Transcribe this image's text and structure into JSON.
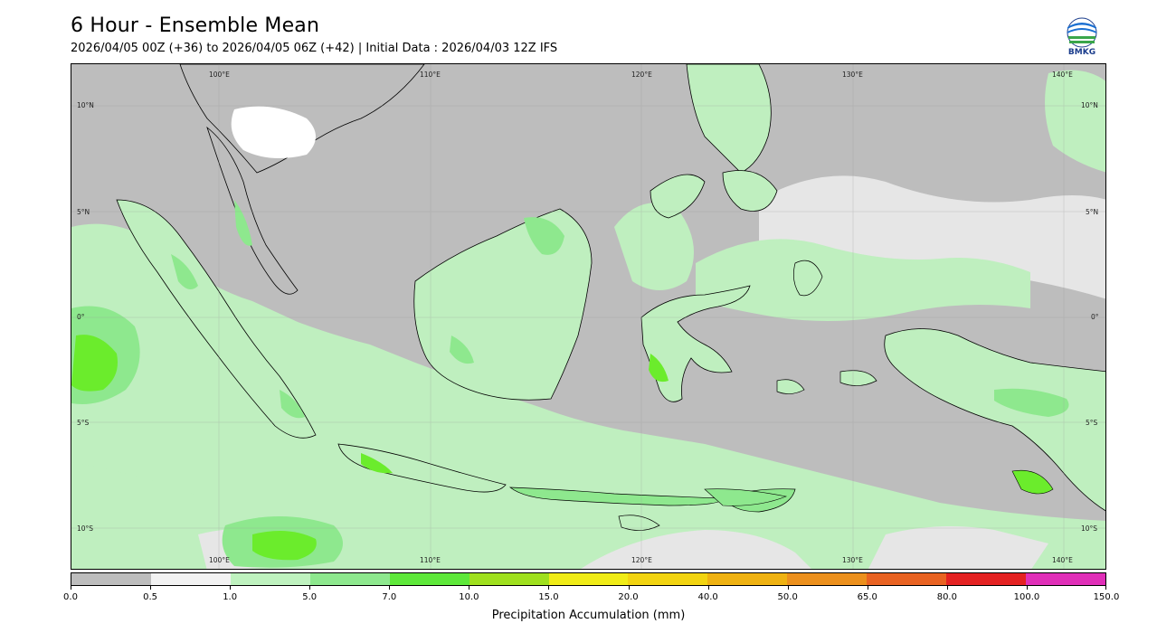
{
  "header": {
    "title": "6 Hour - Ensemble Mean",
    "subtitle": "2026/04/05 00Z (+36) to 2026/04/05 06Z (+42) | Initial Data : 2026/04/03 12Z IFS"
  },
  "logo": {
    "text": "BMKG",
    "icon": "bmkg-logo-icon"
  },
  "map": {
    "region": "Indonesia",
    "longitude_labels_top": [
      "100°E",
      "110°E",
      "120°E",
      "130°E",
      "140°E"
    ],
    "longitude_labels_bottom": [
      "100°E",
      "110°E",
      "120°E",
      "130°E",
      "140°E"
    ],
    "latitude_labels_left": [
      "10°N",
      "5°N",
      "0°",
      "5°S",
      "10°S"
    ],
    "latitude_labels_right": [
      "10°N",
      "5°N",
      "0°",
      "5°S",
      "10°S"
    ],
    "colors": {
      "no_rain": "#bdbdbd",
      "light_drizzle": "#e6e6e6",
      "light": "#bfefbf",
      "moderate": "#8ee88e",
      "heavy": "#6bec2c",
      "coastline": "#000000"
    }
  },
  "colorbar": {
    "label": "Precipitation Accumulation (mm)",
    "tick_labels": [
      "0.0",
      "0.5",
      "1.0",
      "5.0",
      "7.0",
      "10.0",
      "15.0",
      "20.0",
      "40.0",
      "50.0",
      "65.0",
      "80.0",
      "100.0",
      "150.0"
    ],
    "colors": [
      "#bdbdbd",
      "#f2f2f2",
      "#bff2bf",
      "#8ee88e",
      "#5ee83a",
      "#9fe01e",
      "#f0ec17",
      "#f2d411",
      "#efb212",
      "#ec901d",
      "#e96322",
      "#e42222",
      "#e02fb8"
    ]
  }
}
